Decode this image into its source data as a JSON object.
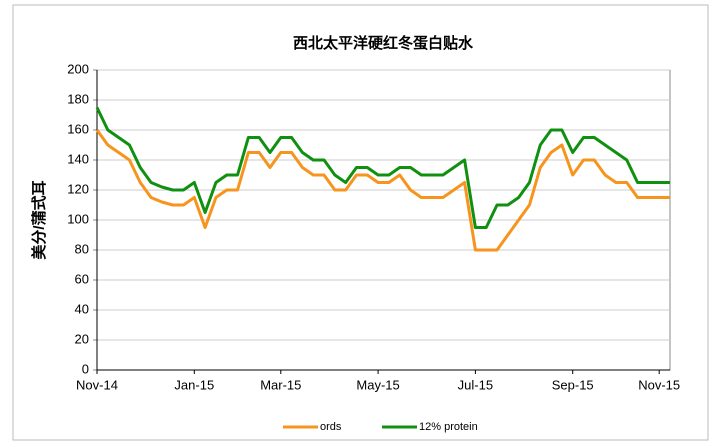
{
  "chart_data": {
    "type": "line",
    "title": "西北太平洋硬红冬蛋白贴水",
    "y_label": "美分/蒲式耳",
    "categories": [
      "Nov-14",
      null,
      null,
      null,
      null,
      null,
      null,
      null,
      null,
      "Jan-15",
      null,
      null,
      null,
      null,
      null,
      null,
      null,
      "Mar-15",
      null,
      null,
      null,
      null,
      null,
      null,
      null,
      null,
      "May-15",
      null,
      null,
      null,
      null,
      null,
      null,
      null,
      null,
      "Jul-15",
      null,
      null,
      null,
      null,
      null,
      null,
      null,
      null,
      "Sep-15",
      null,
      null,
      null,
      null,
      null,
      null,
      null,
      "Nov-15",
      null
    ],
    "series": [
      {
        "name": "ords",
        "color": "#f7941d",
        "values": [
          160,
          150,
          145,
          140,
          125,
          115,
          112,
          110,
          110,
          115,
          95,
          115,
          120,
          120,
          145,
          145,
          135,
          145,
          145,
          135,
          130,
          130,
          120,
          120,
          130,
          130,
          125,
          125,
          130,
          120,
          115,
          115,
          115,
          120,
          125,
          80,
          80,
          80,
          90,
          100,
          110,
          135,
          145,
          150,
          130,
          140,
          140,
          130,
          125,
          125,
          115,
          115,
          115,
          115
        ]
      },
      {
        "name": "12% protein",
        "color": "#109010",
        "values": [
          175,
          160,
          155,
          150,
          135,
          125,
          122,
          120,
          120,
          125,
          105,
          125,
          130,
          130,
          155,
          155,
          145,
          155,
          155,
          145,
          140,
          140,
          130,
          125,
          135,
          135,
          130,
          130,
          135,
          135,
          130,
          130,
          130,
          135,
          140,
          95,
          95,
          110,
          110,
          115,
          125,
          150,
          160,
          160,
          145,
          155,
          155,
          150,
          145,
          140,
          125,
          125,
          125,
          125
        ]
      }
    ],
    "ylim": [
      0,
      200
    ],
    "yticks": [
      0,
      20,
      40,
      60,
      80,
      100,
      120,
      140,
      160,
      180,
      200
    ],
    "grid": true,
    "legend": "bottom"
  }
}
